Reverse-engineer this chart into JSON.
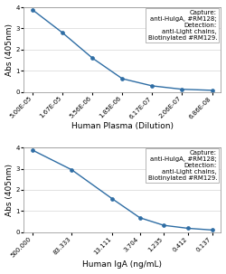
{
  "plot1": {
    "x": [
      5e-05,
      1.67e-05,
      5.56e-06,
      1.85e-06,
      6.17e-07,
      2.06e-07,
      6.86e-08
    ],
    "y": [
      3.88,
      2.8,
      1.6,
      0.62,
      0.28,
      0.12,
      0.07
    ],
    "xlabel": "Human Plasma (Dilution)",
    "ylabel": "Abs (405nm)",
    "ylim": [
      0,
      4
    ],
    "yticks": [
      0,
      1,
      2,
      3,
      4
    ],
    "xlabels": [
      "5.00E-05",
      "1.67E-05",
      "5.56E-06",
      "1.85E-06",
      "6.17E-07",
      "2.06E-07",
      "6.86E-08"
    ],
    "annotation": "Capture:\nanti-HuIgA, #RM128;\nDetection:\nanti-Light chains,\nBiotinylated #RM129."
  },
  "plot2": {
    "x": [
      500.0,
      83.333,
      13.111,
      3.704,
      1.235,
      0.412,
      0.137
    ],
    "y": [
      3.88,
      2.95,
      1.58,
      0.68,
      0.32,
      0.18,
      0.1
    ],
    "xlabel": "Human IgA (ng/mL)",
    "ylabel": "Abs (405nm)",
    "ylim": [
      0,
      4
    ],
    "yticks": [
      0,
      1,
      2,
      3,
      4
    ],
    "xlabels": [
      "500.000",
      "83.333",
      "13.111",
      "3.704",
      "1.235",
      "0.412",
      "0.137"
    ],
    "annotation": "Capture:\nanti-HuIgA, #RM128;\nDetection:\nanti-Light chains,\nBiotinylated #RM129."
  },
  "line_color": "#2e6da4",
  "marker_color": "#2e6da4",
  "bg_color": "#ffffff",
  "annotation_fontsize": 5.0,
  "label_fontsize": 6.5,
  "tick_fontsize": 5.0
}
